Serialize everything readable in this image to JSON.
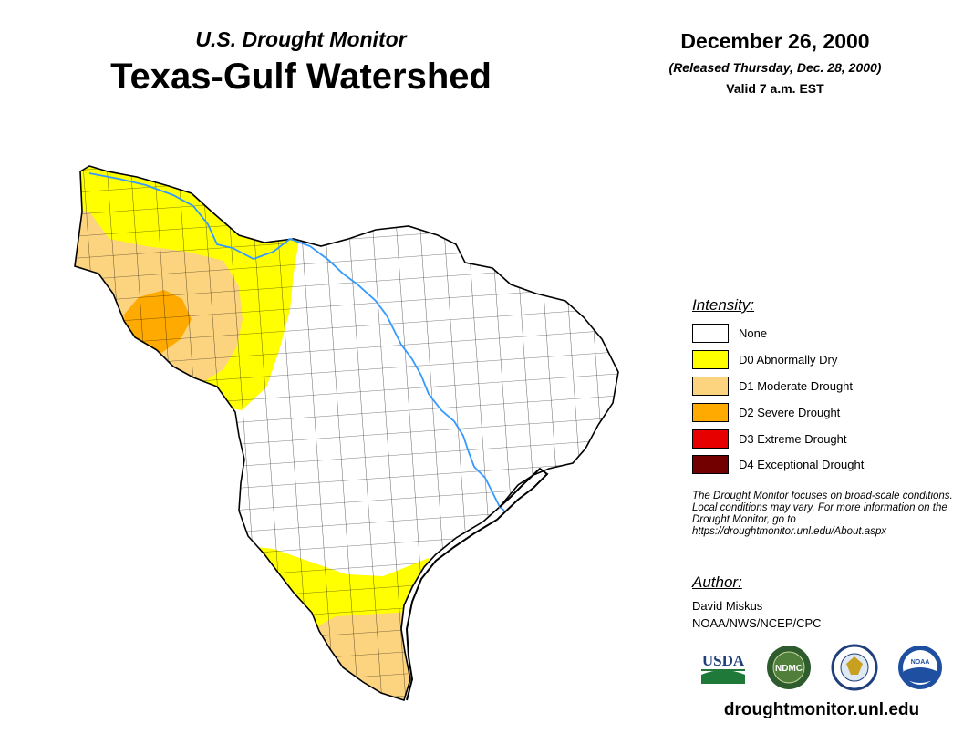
{
  "header": {
    "subtitle": "U.S. Drought Monitor",
    "title": "Texas-Gulf Watershed",
    "date": "December 26, 2000",
    "released": "(Released Thursday, Dec. 28, 2000)",
    "valid": "Valid 7 a.m. EST"
  },
  "legend": {
    "heading": "Intensity:",
    "items": [
      {
        "label": "None",
        "color": "#ffffff"
      },
      {
        "label": "D0 Abnormally Dry",
        "color": "#ffff00"
      },
      {
        "label": "D1 Moderate Drought",
        "color": "#fcd37f"
      },
      {
        "label": "D2 Severe Drought",
        "color": "#ffaa00"
      },
      {
        "label": "D3 Extreme Drought",
        "color": "#e60000"
      },
      {
        "label": "D4 Exceptional Drought",
        "color": "#730000"
      }
    ]
  },
  "note": "The Drought Monitor focuses on broad-scale conditions. Local conditions may vary. For more information on the Drought Monitor, go to https://droughtmonitor.unl.edu/About.aspx",
  "author": {
    "heading": "Author:",
    "name": "David Miskus",
    "org": "NOAA/NWS/NCEP/CPC"
  },
  "logos": {
    "usda": "USDA",
    "ndmc": "NDMC",
    "noaa": "NOAA"
  },
  "website": "droughtmonitor.unl.edu",
  "colors": {
    "river": "#3399ff",
    "border": "#000000",
    "d0": "#ffff00",
    "d1": "#fcd37f",
    "d2": "#ffaa00"
  }
}
